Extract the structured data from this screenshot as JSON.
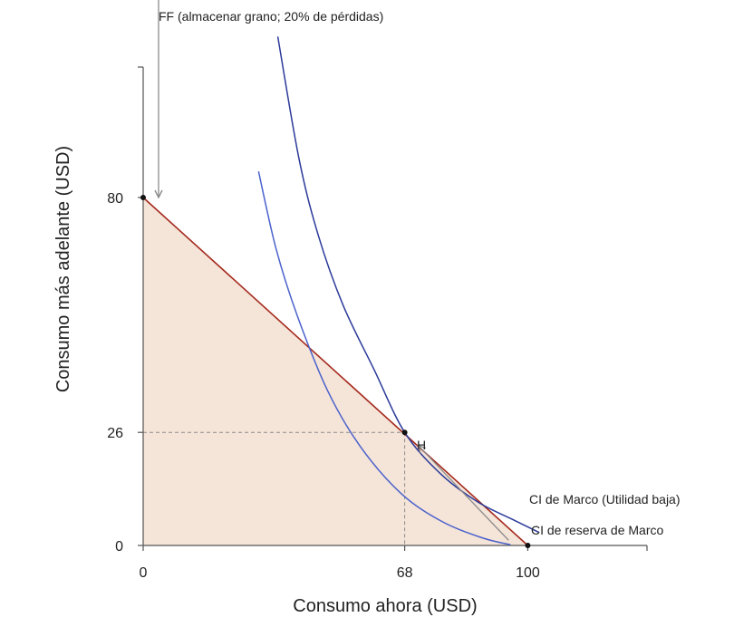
{
  "chart_data": {
    "type": "line",
    "title": "",
    "xlabel": "Consumo ahora (USD)",
    "ylabel": "Consumo más adelante (USD)",
    "xlim": [
      0,
      131
    ],
    "ylim": [
      0,
      110
    ],
    "x_ticks": [
      0,
      68,
      100
    ],
    "y_ticks": [
      0,
      26,
      80
    ],
    "colors": {
      "frontier": "#a52a1e",
      "feasible_fill": "#f5e4d8",
      "ic_high": "#2b3a9a",
      "ic_low": "#4a62cc",
      "arrow": "#8c8c8c",
      "guide": "#8c8c8c",
      "axis": "#555555",
      "point": "#111111"
    },
    "series": [
      {
        "name": "FF",
        "kind": "frontier",
        "points": [
          [
            0,
            80
          ],
          [
            100,
            0
          ]
        ]
      },
      {
        "name": "CI de Marco (Utilidad baja)",
        "kind": "indifference",
        "points": [
          [
            35,
            117
          ],
          [
            40.5,
            89
          ],
          [
            45.5,
            71.4
          ],
          [
            52,
            55.2
          ],
          [
            60,
            40.5
          ],
          [
            68,
            26
          ],
          [
            77.3,
            16.5
          ],
          [
            87,
            10
          ],
          [
            96,
            6
          ],
          [
            102.9,
            3
          ]
        ]
      },
      {
        "name": "CI de reserva de Marco",
        "kind": "indifference",
        "points": [
          [
            30,
            86
          ],
          [
            34.5,
            68.4
          ],
          [
            40,
            53
          ],
          [
            48,
            35.5
          ],
          [
            56.5,
            22.7
          ],
          [
            67,
            12
          ],
          [
            77.5,
            5.6
          ],
          [
            88,
            1.8
          ],
          [
            95.5,
            0.15
          ]
        ]
      }
    ],
    "points": [
      {
        "label": "",
        "x": 0,
        "y": 80
      },
      {
        "label": "H",
        "x": 68,
        "y": 26
      },
      {
        "label": "",
        "x": 100,
        "y": 0
      }
    ],
    "annotations": {
      "top": "FF (almacenar grano; 20% de pérdidas)",
      "point_h": "H",
      "ic_high": "CI de Marco (Utilidad baja)",
      "ic_low": "CI de reserva de Marco"
    },
    "arrows": [
      {
        "from": [
          4,
          175
        ],
        "to": [
          4,
          80
        ]
      },
      {
        "from": [
          95,
          1.2
        ],
        "to": [
          71.5,
          23
        ]
      }
    ]
  }
}
